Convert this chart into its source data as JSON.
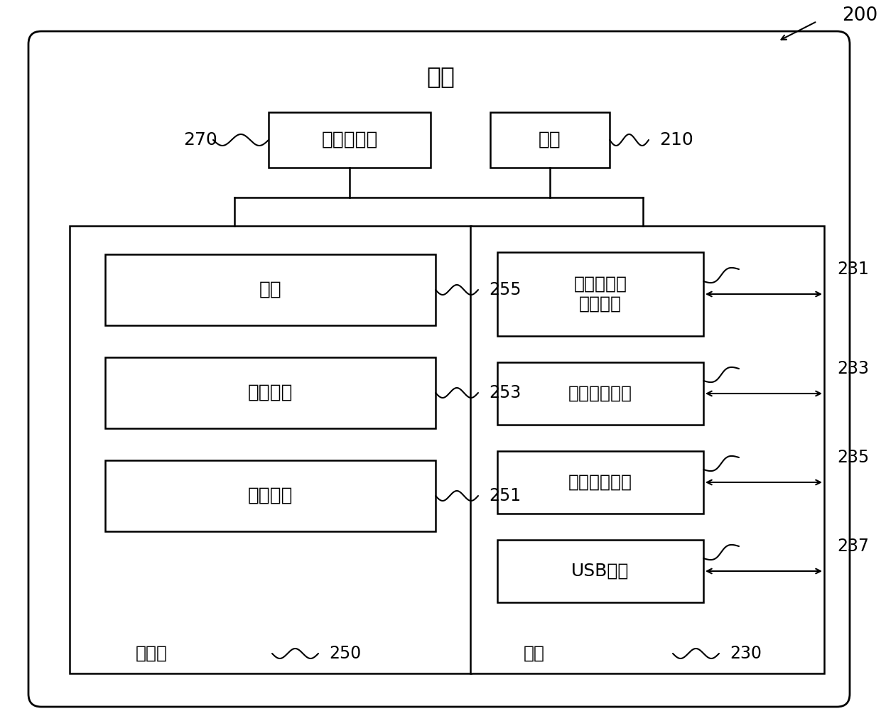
{
  "title": "网关",
  "label_200": "200",
  "label_270": "270",
  "label_210": "210",
  "label_250": "250",
  "label_251": "251",
  "label_253": "253",
  "label_255": "255",
  "label_230": "230",
  "label_231": "231",
  "label_233": "233",
  "label_235": "235",
  "label_237": "237",
  "cpu_label": "中央处理器",
  "power_label": "电源",
  "data_label": "数据",
  "app_label": "应用程序",
  "os_label": "操作系统",
  "mem_label": "存储器",
  "iface_label": "接口",
  "wired_label": "有线或无线\n网络接口",
  "serial_label": "串并转换接口",
  "io_label": "输入输出接口",
  "usb_label": "USB接口",
  "bg_color": "#ffffff",
  "font_size_title": 22,
  "font_size_box": 19,
  "font_size_number": 17
}
